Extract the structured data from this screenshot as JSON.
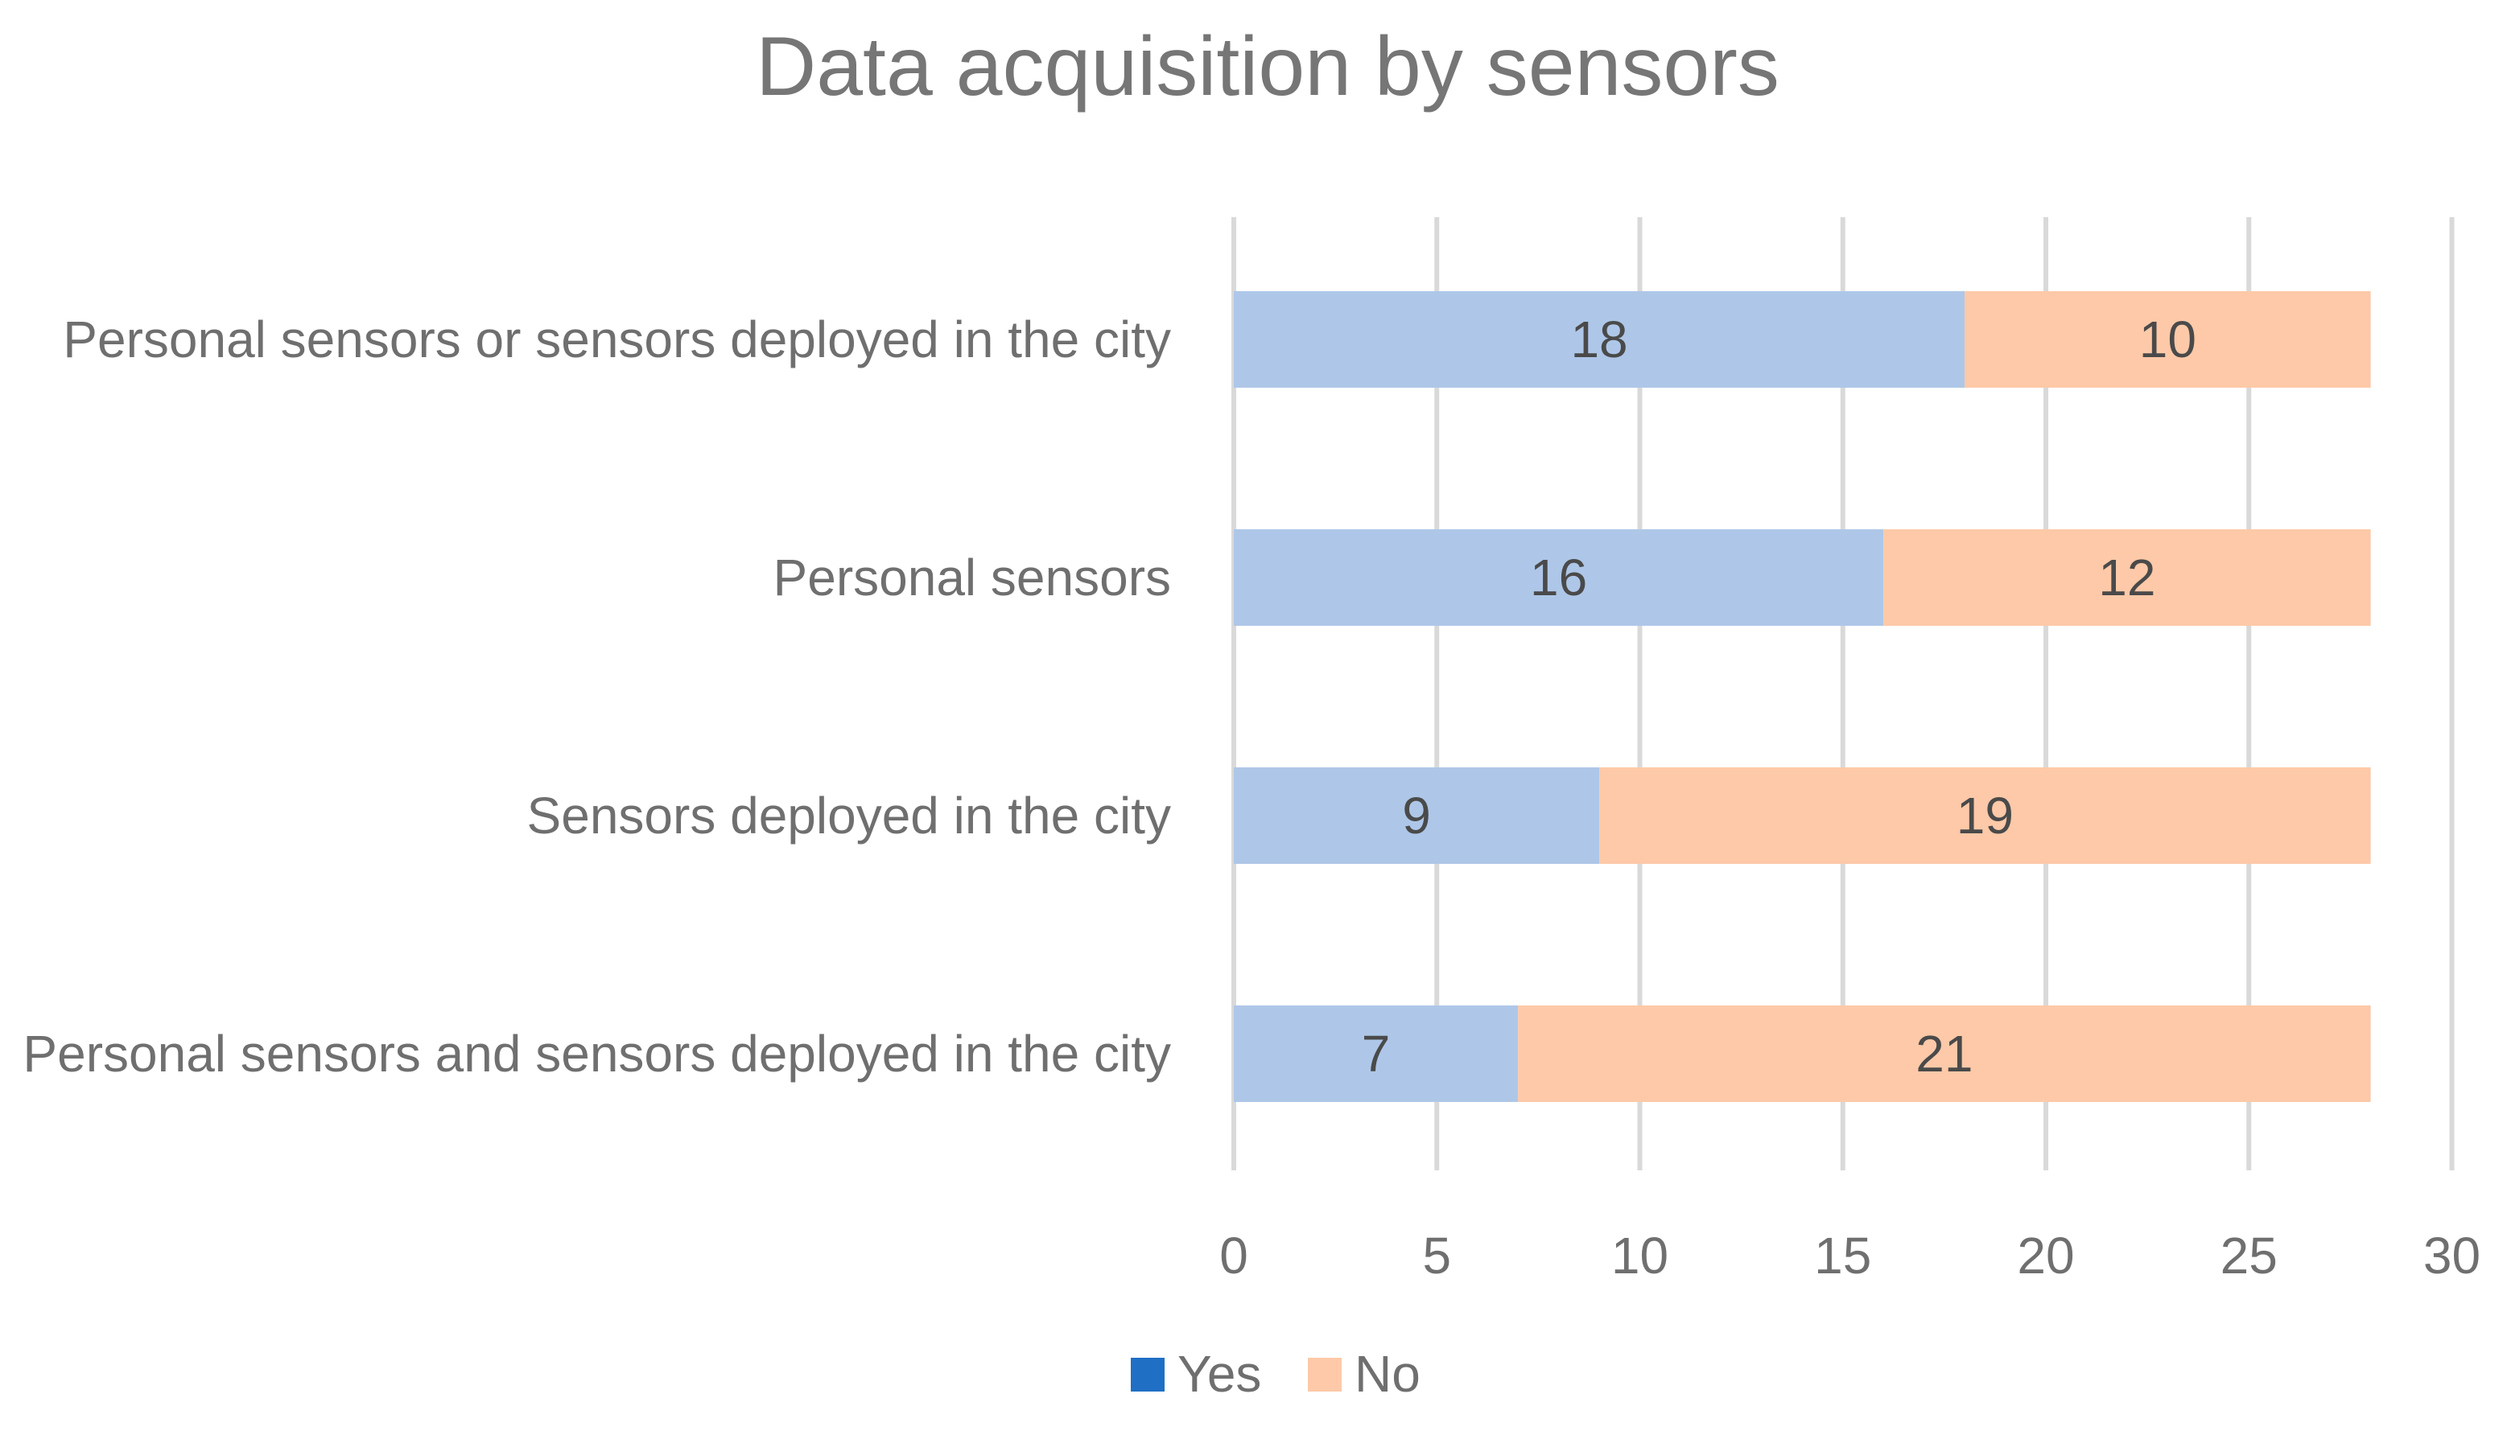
{
  "chart_data": {
    "type": "bar",
    "orientation": "horizontal",
    "stacked": true,
    "title": "Data acquisition by sensors",
    "xlabel": "",
    "ylabel": "",
    "categories": [
      "Personal sensors or sensors deployed in the city",
      "Personal sensors",
      "Sensors deployed in the city",
      "Personal sensors and sensors deployed in the city"
    ],
    "series": [
      {
        "name": "Yes",
        "values": [
          18,
          16,
          9,
          7
        ],
        "color": "#aec7e8",
        "legend_color": "#1f6fc5"
      },
      {
        "name": "No",
        "values": [
          10,
          12,
          19,
          21
        ],
        "color": "#fdc9a8",
        "legend_color": "#fdc9a8"
      }
    ],
    "xlim": [
      0,
      30
    ],
    "xticks": [
      0,
      5,
      10,
      15,
      20,
      25,
      30
    ],
    "grid": true,
    "legend_position": "bottom"
  }
}
